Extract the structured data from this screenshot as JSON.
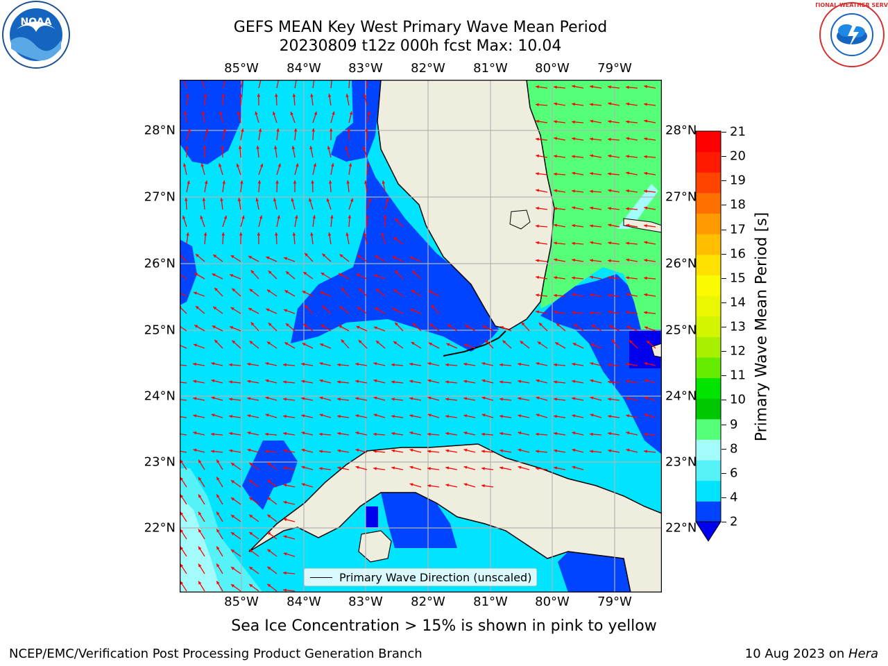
{
  "title": {
    "line1": "GEFS MEAN Key West Primary Wave Mean Period",
    "line2": "20230809 t12z 000h fcst   Max: 10.04"
  },
  "axes": {
    "longitude_ticks": [
      "85°W",
      "84°W",
      "83°W",
      "82°W",
      "81°W",
      "80°W",
      "79°W"
    ],
    "latitude_ticks": [
      "28°N",
      "27°N",
      "26°N",
      "25°N",
      "24°N",
      "23°N",
      "22°N"
    ]
  },
  "colorbar": {
    "label": "Primary Wave Mean Period [s]",
    "ticks": [
      "21",
      "20",
      "19",
      "18",
      "17",
      "16",
      "15",
      "14",
      "13",
      "12",
      "11",
      "10",
      "9",
      "8",
      "6",
      "4",
      "2"
    ],
    "colors_bottom_to_top": [
      "#0044ff",
      "#00e4ff",
      "#55f2f8",
      "#a4fbfb",
      "#55ff77",
      "#00c800",
      "#00e400",
      "#66ec00",
      "#a8f000",
      "#d4f500",
      "#ebf700",
      "#fbfb00",
      "#ffe100",
      "#ffbe00",
      "#ff9a00",
      "#ff7000",
      "#ff4400",
      "#ff1a00",
      "#ff0000"
    ],
    "extend_color": "#0000ee"
  },
  "legend": {
    "label": "Primary Wave Direction (unscaled)"
  },
  "footnote": "Sea Ice Concentration > 15% is shown in pink to yellow",
  "credit": "NCEP/EMC/Verification Post Processing Product Generation Branch",
  "date": {
    "text": "10 Aug 2023 on ",
    "machine": "Hera"
  },
  "colors": {
    "land": "#efedde",
    "coast": "#000000",
    "grid": "#b3b3b3",
    "arrow": "#ff0000",
    "period_2_4": "#0044ff",
    "period_4_6": "#00e4ff",
    "period_6_8": "#55f2f8",
    "period_8_9": "#a4fbfb",
    "period_9_10": "#55ff77",
    "period_below_2": "#0000ee"
  },
  "logos": {
    "noaa": {
      "name": "noaa-logo",
      "text": "NOAA"
    },
    "nws": {
      "name": "nws-logo",
      "text": "NATIONAL WEATHER SERVICE"
    }
  }
}
